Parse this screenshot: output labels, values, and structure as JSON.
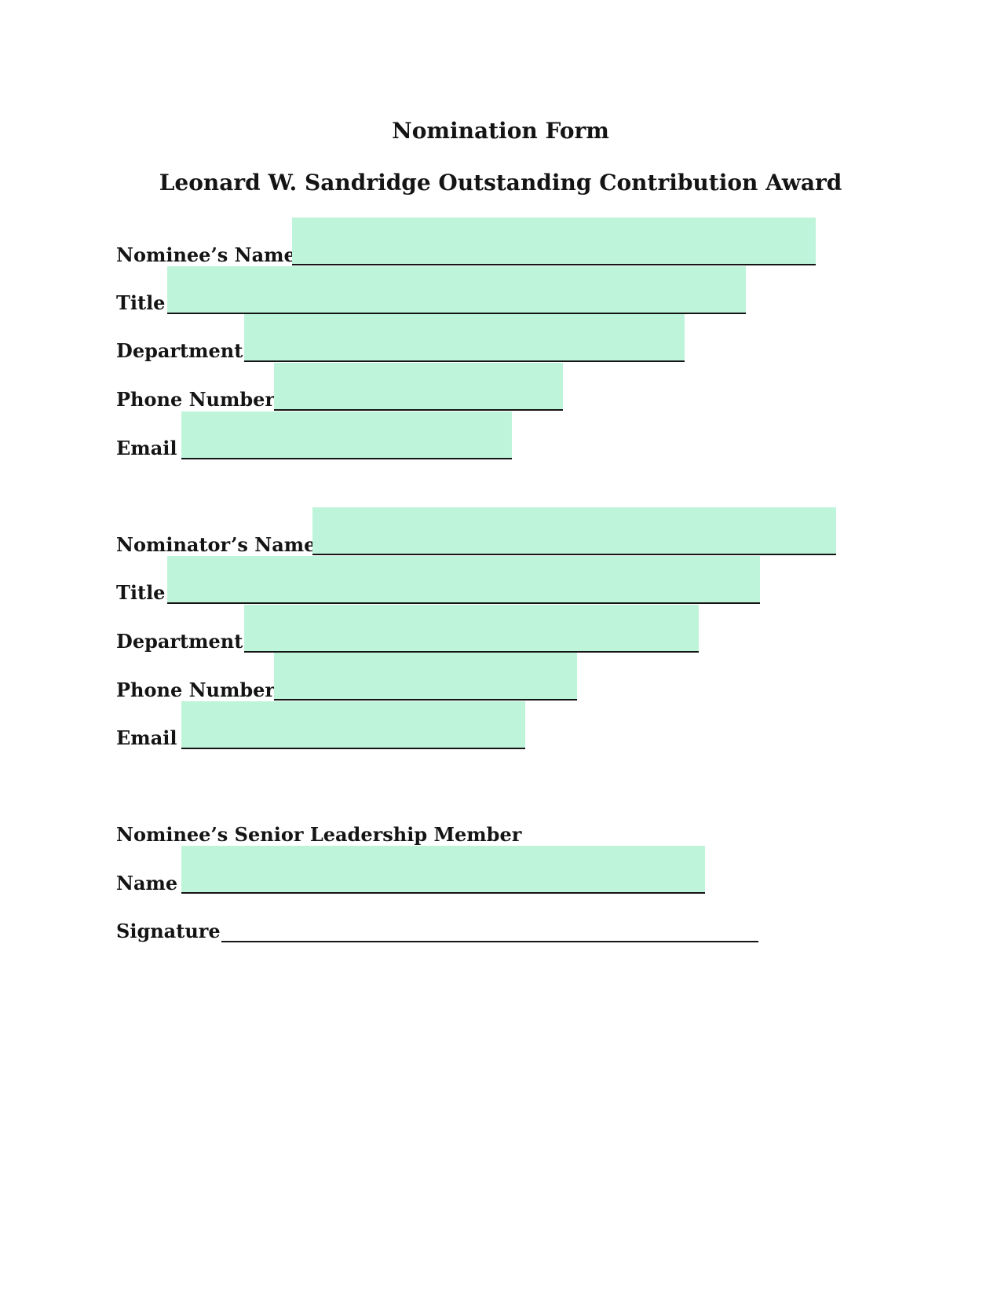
{
  "document": {
    "title": "Nomination Form",
    "subtitle": "Leonard W. Sandridge Outstanding Contribution Award"
  },
  "nominee": {
    "name_label": "Nominee’s Name",
    "title_label": "Title",
    "department_label": "Department",
    "phone_label": "Phone Number",
    "email_label": "Email"
  },
  "nominator": {
    "name_label": "Nominator’s Name",
    "title_label": "Title",
    "department_label": "Department",
    "phone_label": "Phone Number",
    "email_label": "Email"
  },
  "leadership": {
    "heading": "Nominee’s Senior Leadership Member",
    "name_label": "Name",
    "signature_label": "Signature"
  },
  "colors": {
    "field_fill": "#bef5da",
    "text": "#141414"
  }
}
